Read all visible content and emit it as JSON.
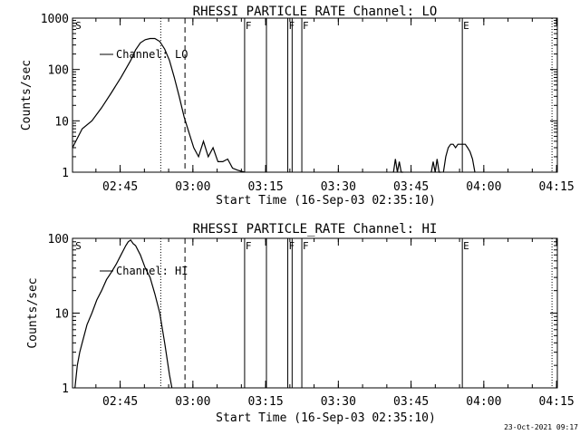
{
  "chart_data": [
    {
      "type": "line",
      "title": "RHESSI PARTICLE_RATE Channel: LO",
      "xlabel": "Start Time (16-Sep-03 02:35:10)",
      "ylabel": "Counts/sec",
      "yscale": "log",
      "ylim": [
        1,
        1000
      ],
      "xlim_minutes_after_start": [
        0,
        100
      ],
      "x_ticks": [
        {
          "label": "02:45",
          "t": 9.83
        },
        {
          "label": "03:00",
          "t": 24.83
        },
        {
          "label": "03:15",
          "t": 39.83
        },
        {
          "label": "03:30",
          "t": 54.83
        },
        {
          "label": "03:45",
          "t": 69.83
        },
        {
          "label": "04:00",
          "t": 84.83
        },
        {
          "label": "04:15",
          "t": 99.83
        }
      ],
      "y_ticks": [
        {
          "label": "1",
          "v": 1
        },
        {
          "label": "10",
          "v": 10
        },
        {
          "label": "100",
          "v": 100
        },
        {
          "label": "1000",
          "v": 1000
        }
      ],
      "markers": [
        {
          "label": "S",
          "t": 0.4,
          "style": "none"
        },
        {
          "label": "F",
          "t": 35.5,
          "style": "solid"
        },
        {
          "label": "",
          "t": 40.0,
          "style": "solid"
        },
        {
          "label": "F",
          "t": 44.4,
          "style": "solid"
        },
        {
          "label": "",
          "t": 45.3,
          "style": "solid"
        },
        {
          "label": "F",
          "t": 47.3,
          "style": "solid"
        },
        {
          "label": "E",
          "t": 80.4,
          "style": "solid"
        }
      ],
      "dotted_lines": [
        18.2,
        98.9
      ],
      "dashed_lines": [
        23.2
      ],
      "legend": {
        "label": "Channel: LO",
        "position": "top-left"
      },
      "series": [
        {
          "name": "Channel: LO",
          "t": [
            0,
            2,
            4,
            6,
            8,
            10,
            12,
            13,
            14,
            15,
            16,
            17,
            18,
            19,
            20,
            21,
            22,
            23,
            24,
            25,
            26,
            27,
            28,
            29,
            30,
            31,
            32,
            33,
            34,
            35.5
          ],
          "values": [
            3,
            7,
            10,
            18,
            35,
            70,
            150,
            240,
            330,
            380,
            400,
            400,
            350,
            250,
            150,
            70,
            30,
            12,
            6,
            3,
            2,
            4,
            2,
            3,
            1.6,
            1.6,
            1.8,
            1.2,
            1.1,
            1.0
          ]
        },
        {
          "name": "Channel: LO",
          "t": [
            66.2,
            66.6,
            67.0,
            67.4,
            67.8,
            68.2
          ],
          "values": [
            1,
            1.8,
            1,
            1.6,
            1,
            1
          ]
        },
        {
          "name": "Channel: LO",
          "t": [
            74.0,
            74.4,
            74.8,
            75.2,
            75.6,
            76.0
          ],
          "values": [
            1,
            1.6,
            1,
            1.8,
            1,
            1
          ]
        },
        {
          "name": "Channel: LO",
          "t": [
            76.5,
            77.0,
            77.5,
            78.0,
            78.5,
            79.0,
            79.5,
            80.0,
            80.5,
            81.0,
            81.5,
            82.0,
            82.5,
            83.0
          ],
          "values": [
            1,
            2,
            3,
            3.5,
            3.5,
            3.0,
            3.5,
            3.5,
            3.5,
            3.5,
            3.0,
            2.5,
            1.8,
            1
          ]
        }
      ]
    },
    {
      "type": "line",
      "title": "RHESSI PARTICLE_RATE Channel: HI",
      "xlabel": "Start Time (16-Sep-03 02:35:10)",
      "ylabel": "Counts/sec",
      "yscale": "log",
      "ylim": [
        1,
        100
      ],
      "xlim_minutes_after_start": [
        0,
        100
      ],
      "x_ticks": [
        {
          "label": "02:45",
          "t": 9.83
        },
        {
          "label": "03:00",
          "t": 24.83
        },
        {
          "label": "03:15",
          "t": 39.83
        },
        {
          "label": "03:30",
          "t": 54.83
        },
        {
          "label": "03:45",
          "t": 69.83
        },
        {
          "label": "04:00",
          "t": 84.83
        },
        {
          "label": "04:15",
          "t": 99.83
        }
      ],
      "y_ticks": [
        {
          "label": "1",
          "v": 1
        },
        {
          "label": "10",
          "v": 10
        },
        {
          "label": "100",
          "v": 100
        }
      ],
      "markers": [
        {
          "label": "S",
          "t": 0.4,
          "style": "none"
        },
        {
          "label": "F",
          "t": 35.5,
          "style": "solid"
        },
        {
          "label": "",
          "t": 40.0,
          "style": "solid"
        },
        {
          "label": "F",
          "t": 44.4,
          "style": "solid"
        },
        {
          "label": "",
          "t": 45.3,
          "style": "solid"
        },
        {
          "label": "F",
          "t": 47.3,
          "style": "solid"
        },
        {
          "label": "E",
          "t": 80.4,
          "style": "solid"
        }
      ],
      "dotted_lines": [
        18.2,
        98.9
      ],
      "dashed_lines": [
        23.2
      ],
      "legend": {
        "label": "Channel: HI",
        "position": "top-left"
      },
      "series": [
        {
          "name": "Channel: HI",
          "t": [
            0.5,
            1,
            1.5,
            2,
            3,
            4,
            5,
            6,
            7,
            8,
            9,
            10,
            11,
            11.5,
            12,
            12.5,
            13,
            14,
            15,
            16,
            17,
            18,
            19,
            20,
            20.5
          ],
          "values": [
            1,
            2,
            3,
            4,
            7,
            10,
            15,
            20,
            28,
            35,
            45,
            60,
            80,
            90,
            95,
            85,
            80,
            60,
            40,
            30,
            18,
            10,
            4,
            1.5,
            1
          ]
        }
      ]
    }
  ],
  "footer": {
    "timestamp": "23-Oct-2021 09:17"
  }
}
